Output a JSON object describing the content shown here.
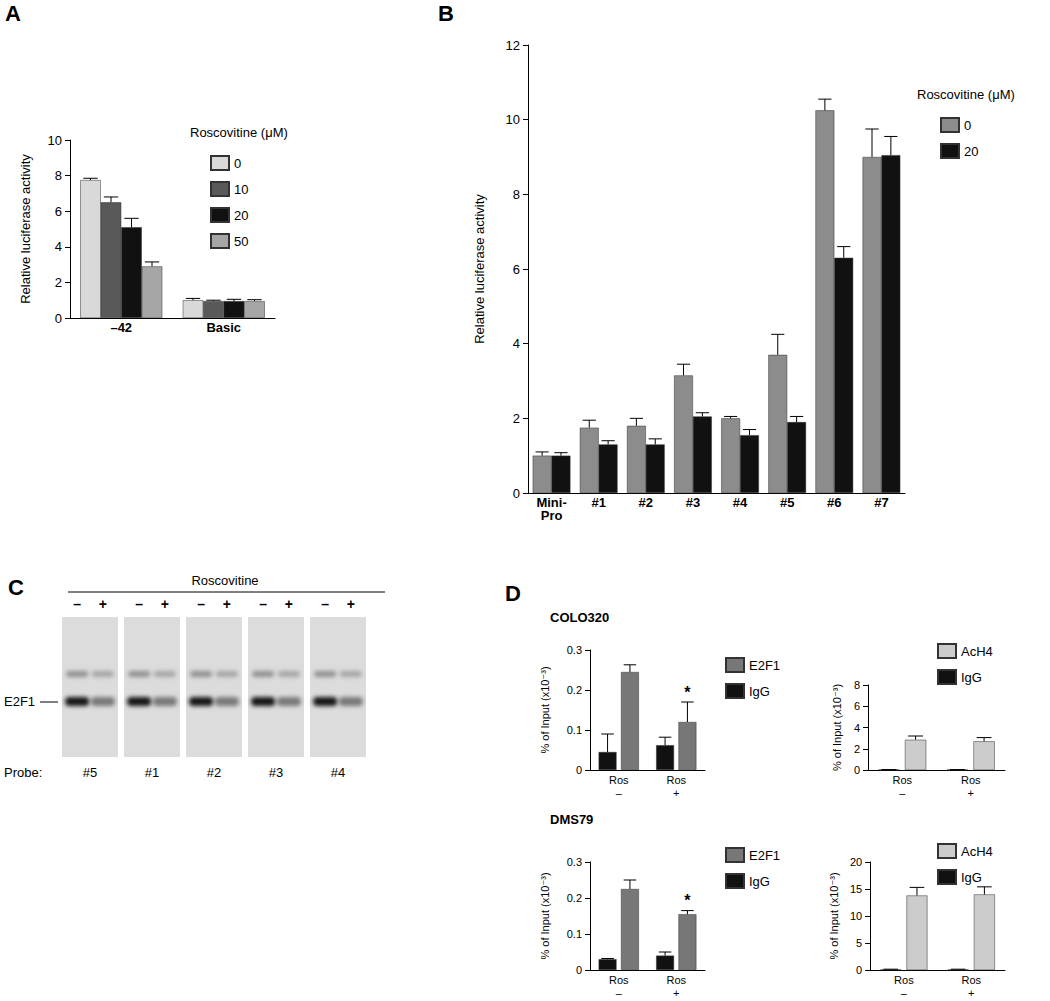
{
  "chart_data": [
    {
      "panel": "A",
      "type": "bar",
      "y_label": "Relative luciferase activity",
      "legend_title": "Roscovitine (μM)",
      "legend": "right",
      "categories": [
        "–42",
        "Basic"
      ],
      "series": [
        {
          "name": "0",
          "color": "#d9d9d9",
          "values": [
            7.75,
            1.0
          ],
          "errors": [
            0.1,
            0.1
          ]
        },
        {
          "name": "10",
          "color": "#595959",
          "values": [
            6.5,
            0.95
          ],
          "errors": [
            0.3,
            0.05
          ]
        },
        {
          "name": "20",
          "color": "#111111",
          "values": [
            5.1,
            0.95
          ],
          "errors": [
            0.5,
            0.1
          ]
        },
        {
          "name": "50",
          "color": "#a6a6a6",
          "values": [
            2.9,
            0.95
          ],
          "errors": [
            0.25,
            0.08
          ]
        }
      ],
      "ylim": [
        0,
        10
      ],
      "yticks": [
        0,
        2,
        4,
        6,
        8,
        10
      ],
      "grid": false
    },
    {
      "panel": "B",
      "type": "bar",
      "y_label": "Relative luciferase activity",
      "legend_title": "Roscovitine (μM)",
      "legend": "right",
      "categories": [
        "Mini-\nPro",
        "#1",
        "#2",
        "#3",
        "#4",
        "#5",
        "#6",
        "#7"
      ],
      "series": [
        {
          "name": "0",
          "color": "#8c8c8c",
          "values": [
            1.0,
            1.75,
            1.8,
            3.15,
            2.0,
            3.7,
            10.25,
            9.0
          ],
          "errors": [
            0.1,
            0.2,
            0.2,
            0.3,
            0.05,
            0.55,
            0.3,
            0.75
          ]
        },
        {
          "name": "20",
          "color": "#111111",
          "values": [
            1.0,
            1.3,
            1.3,
            2.05,
            1.55,
            1.9,
            6.3,
            9.05
          ],
          "errors": [
            0.08,
            0.1,
            0.15,
            0.1,
            0.15,
            0.15,
            0.3,
            0.5
          ]
        }
      ],
      "ylim": [
        0,
        12
      ],
      "yticks": [
        0,
        2,
        4,
        6,
        8,
        10,
        12
      ],
      "grid": false
    },
    {
      "panel": "D",
      "title": "COLO320",
      "type": "bar",
      "y_label": "% of Input (x10⁻³)",
      "legend": "right",
      "categories": [
        "Ros\n–",
        "Ros\n+"
      ],
      "series": [
        {
          "name": "E2F1",
          "color": "#777777",
          "values": [
            0.245,
            0.12
          ],
          "errors": [
            0.018,
            0.05
          ]
        },
        {
          "name": "IgG",
          "color": "#111111",
          "values": [
            0.045,
            0.062
          ],
          "errors": [
            0.045,
            0.02
          ]
        }
      ],
      "annotations": [
        {
          "text": "*",
          "category": "Ros\n+",
          "series": "E2F1"
        }
      ],
      "ylim": [
        0,
        0.3
      ],
      "yticks": [
        0,
        0.1,
        0.2,
        0.3
      ],
      "grid": false
    },
    {
      "type": "bar",
      "y_label": "% of Input (x10⁻³)",
      "legend": "right",
      "categories": [
        "Ros\n–",
        "Ros\n+"
      ],
      "series": [
        {
          "name": "AcH4",
          "color": "#cccccc",
          "values": [
            2.85,
            2.7
          ],
          "errors": [
            0.35,
            0.35
          ]
        },
        {
          "name": "IgG",
          "color": "#111111",
          "values": [
            0.03,
            0.03
          ],
          "errors": [
            0.01,
            0.01
          ]
        }
      ],
      "ylim": [
        0,
        8
      ],
      "yticks": [
        0,
        2,
        4,
        6,
        8
      ],
      "grid": false
    },
    {
      "title": "DMS79",
      "type": "bar",
      "y_label": "% of Input (x10⁻³)",
      "legend": "right",
      "categories": [
        "Ros\n–",
        "Ros\n+"
      ],
      "series": [
        {
          "name": "E2F1",
          "color": "#777777",
          "values": [
            0.225,
            0.155
          ],
          "errors": [
            0.025,
            0.01
          ]
        },
        {
          "name": "IgG",
          "color": "#111111",
          "values": [
            0.03,
            0.04
          ],
          "errors": [
            0.002,
            0.01
          ]
        }
      ],
      "annotations": [
        {
          "text": "*",
          "category": "Ros\n+",
          "series": "E2F1"
        }
      ],
      "ylim": [
        0,
        0.3
      ],
      "yticks": [
        0,
        0.1,
        0.2,
        0.3
      ],
      "grid": false
    },
    {
      "type": "bar",
      "y_label": "% of Input (x10⁻³)",
      "legend": "right",
      "categories": [
        "Ros\n–",
        "Ros\n+"
      ],
      "series": [
        {
          "name": "AcH4",
          "color": "#cccccc",
          "values": [
            13.8,
            14.0
          ],
          "errors": [
            1.5,
            1.4
          ]
        },
        {
          "name": "IgG",
          "color": "#111111",
          "values": [
            0.1,
            0.1
          ],
          "errors": [
            0.05,
            0.05
          ]
        }
      ],
      "ylim": [
        0,
        20
      ],
      "yticks": [
        0,
        5,
        10,
        15,
        20
      ],
      "grid": false
    }
  ],
  "gel": {
    "panel": "C",
    "title": "Roscovitine",
    "band_label": "E2F1",
    "probe_label": "Probe:",
    "groups": [
      {
        "probe": "#5",
        "lanes": [
          "–",
          "+"
        ]
      },
      {
        "probe": "#1",
        "lanes": [
          "–",
          "+"
        ]
      },
      {
        "probe": "#2",
        "lanes": [
          "–",
          "+"
        ]
      },
      {
        "probe": "#3",
        "lanes": [
          "–",
          "+"
        ]
      },
      {
        "probe": "#4",
        "lanes": [
          "–",
          "+"
        ]
      }
    ]
  }
}
